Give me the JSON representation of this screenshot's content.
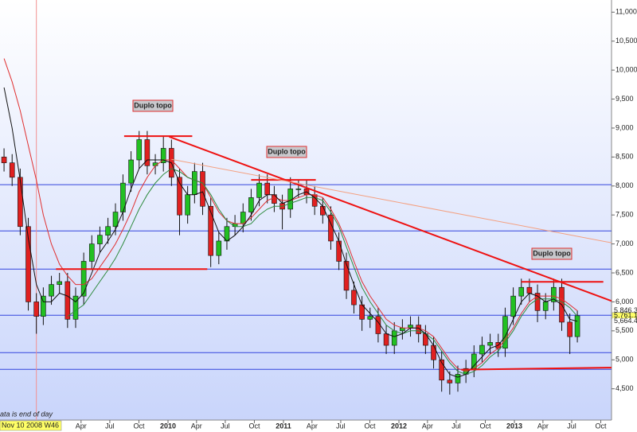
{
  "chart_data": {
    "type": "candlestick",
    "xlim": [
      2008.545,
      2013.841
    ],
    "ylim": [
      3960,
      11210
    ],
    "xticks": [
      {
        "value": 2009.247,
        "label": "Apr"
      },
      {
        "value": 2009.496,
        "label": "Jul"
      },
      {
        "value": 2009.748,
        "label": "Oct"
      },
      2010,
      {
        "value": 2010.247,
        "label": "Apr"
      },
      {
        "value": 2010.496,
        "label": "Jul"
      },
      {
        "value": 2010.748,
        "label": "Oct"
      },
      2011,
      {
        "value": 2011.247,
        "label": "Apr"
      },
      {
        "value": 2011.496,
        "label": "Jul"
      },
      {
        "value": 2011.748,
        "label": "Oct"
      },
      2012,
      {
        "value": 2012.247,
        "label": "Apr"
      },
      {
        "value": 2012.496,
        "label": "Jul"
      },
      {
        "value": 2012.748,
        "label": "Oct"
      },
      2013,
      {
        "value": 2013.247,
        "label": "Apr"
      },
      {
        "value": 2013.496,
        "label": "Jul"
      },
      {
        "value": 2013.748,
        "label": "Oct"
      }
    ],
    "yticks": [
      {
        "value": 4500,
        "label": "4,500"
      },
      {
        "value": 5000,
        "label": "5,000"
      },
      {
        "value": 5500,
        "label": "5,500"
      },
      {
        "value": 6000,
        "label": "6,000"
      },
      {
        "value": 6500,
        "label": "6,500"
      },
      {
        "value": 7000,
        "label": "7,000"
      },
      {
        "value": 7500,
        "label": "7,500"
      },
      {
        "value": 8000,
        "label": "8,000"
      },
      {
        "value": 8500,
        "label": "8,500"
      },
      {
        "value": 9000,
        "label": "9,000"
      },
      {
        "value": 9500,
        "label": "9,500"
      },
      {
        "value": 10000,
        "label": "10,000"
      },
      {
        "value": 10500,
        "label": "10,500"
      },
      {
        "value": 11000,
        "label": "11,000"
      }
    ],
    "x": [
      2008.58,
      2008.65,
      2008.72,
      2008.79,
      2008.86,
      2008.92,
      2008.99,
      2009.06,
      2009.13,
      2009.2,
      2009.27,
      2009.34,
      2009.41,
      2009.48,
      2009.545,
      2009.61,
      2009.68,
      2009.75,
      2009.82,
      2009.89,
      2009.96,
      2010.03,
      2010.1,
      2010.17,
      2010.23,
      2010.3,
      2010.37,
      2010.44,
      2010.51,
      2010.58,
      2010.65,
      2010.72,
      2010.79,
      2010.86,
      2010.92,
      2010.99,
      2011.06,
      2011.13,
      2011.2,
      2011.27,
      2011.34,
      2011.41,
      2011.48,
      2011.545,
      2011.61,
      2011.68,
      2011.75,
      2011.82,
      2011.89,
      2011.96,
      2012.03,
      2012.1,
      2012.17,
      2012.23,
      2012.3,
      2012.37,
      2012.44,
      2012.51,
      2012.58,
      2012.65,
      2012.72,
      2012.79,
      2012.86,
      2012.92,
      2012.99,
      2013.06,
      2013.13,
      2013.2,
      2013.27,
      2013.34,
      2013.41,
      2013.48,
      2013.545
    ],
    "open": [
      8500,
      8400,
      8150,
      7300,
      6000,
      5750,
      6100,
      6300,
      6350,
      5700,
      6100,
      6700,
      7000,
      7150,
      7300,
      7550,
      8050,
      8450,
      8800,
      8350,
      8400,
      8650,
      8150,
      7500,
      7850,
      8250,
      7650,
      6800,
      7050,
      7300,
      7350,
      7550,
      7800,
      8050,
      7850,
      7700,
      7600,
      7950,
      7950,
      7850,
      7650,
      7500,
      7050,
      6700,
      6200,
      5950,
      5700,
      5750,
      5450,
      5250,
      5500,
      5550,
      5600,
      5450,
      5250,
      5000,
      4650,
      4600,
      4750,
      4850,
      5100,
      5250,
      5300,
      5200,
      5750,
      6100,
      6250,
      6150,
      5850,
      6000,
      6250,
      5650,
      5400
    ],
    "high": [
      8650,
      8550,
      8300,
      7450,
      6150,
      6250,
      6450,
      6500,
      6500,
      6250,
      6850,
      7150,
      7300,
      7450,
      7700,
      8200,
      8600,
      8950,
      8950,
      8550,
      8850,
      8800,
      8300,
      8000,
      8400,
      8400,
      7800,
      7200,
      7450,
      7500,
      7700,
      7950,
      8200,
      8200,
      8000,
      7850,
      8150,
      8100,
      8100,
      8000,
      7800,
      7650,
      7200,
      6850,
      6350,
      6100,
      5900,
      5900,
      5600,
      5650,
      5700,
      5750,
      5750,
      5600,
      5400,
      5150,
      4800,
      4900,
      5000,
      5250,
      5400,
      5450,
      5450,
      5900,
      6250,
      6400,
      6400,
      6300,
      6150,
      6400,
      6400,
      5800,
      5850
    ],
    "low": [
      8250,
      8000,
      7150,
      5850,
      5450,
      5600,
      5950,
      6150,
      5550,
      5550,
      5950,
      6550,
      6850,
      7000,
      7150,
      7400,
      7900,
      8300,
      8200,
      8200,
      8250,
      8000,
      7150,
      7350,
      7700,
      7500,
      6600,
      6650,
      6900,
      7150,
      7200,
      7400,
      7650,
      7700,
      7550,
      7250,
      7450,
      7800,
      7700,
      7500,
      7350,
      6900,
      6550,
      6050,
      5800,
      5500,
      5550,
      5300,
      5100,
      5100,
      5350,
      5400,
      5300,
      5100,
      4850,
      4450,
      4400,
      4450,
      4600,
      4700,
      4950,
      5100,
      5050,
      5050,
      5600,
      5950,
      6000,
      5650,
      5700,
      5850,
      5500,
      5100,
      5300
    ],
    "close": [
      8400,
      8150,
      7300,
      6000,
      5750,
      6100,
      6300,
      6350,
      5700,
      6100,
      6700,
      7000,
      7150,
      7300,
      7550,
      8050,
      8450,
      8800,
      8350,
      8400,
      8650,
      8150,
      7500,
      7850,
      8250,
      7650,
      6800,
      7050,
      7300,
      7350,
      7550,
      7800,
      8050,
      7850,
      7700,
      7600,
      7950,
      7950,
      7850,
      7650,
      7500,
      7050,
      6700,
      6200,
      5950,
      5700,
      5750,
      5450,
      5250,
      5500,
      5550,
      5600,
      5450,
      5250,
      5000,
      4650,
      4600,
      4750,
      4850,
      5100,
      5250,
      5300,
      5200,
      5750,
      6100,
      6250,
      6150,
      5850,
      6000,
      6250,
      5650,
      5400,
      5761.12
    ],
    "up_color": "#22c022",
    "down_color": "#e02020",
    "overlays": [
      {
        "color": "#e03030",
        "values": [
          10200,
          9800,
          9300,
          8700,
          8100,
          7500,
          7000,
          6650,
          6450,
          6300,
          6300,
          6400,
          6600,
          6800,
          7000,
          7250,
          7550,
          7900,
          8150,
          8350,
          8450,
          8450,
          8300,
          8150,
          8100,
          8050,
          7800,
          7550,
          7400,
          7350,
          7350,
          7450,
          7600,
          7750,
          7800,
          7750,
          7750,
          7800,
          7850,
          7850,
          7800,
          7600,
          7350,
          7050,
          6700,
          6350,
          6100,
          5900,
          5700,
          5600,
          5550,
          5550,
          5550,
          5500,
          5400,
          5200,
          5000,
          4850,
          4800,
          4850,
          4950,
          5100,
          5200,
          5350,
          5550,
          5800,
          6000,
          6100,
          6100,
          6100,
          6050,
          5950,
          5846.3
        ]
      },
      {
        "color": "#2e8b3e",
        "values": [
          null,
          null,
          null,
          null,
          null,
          null,
          null,
          null,
          5750,
          5850,
          5950,
          6150,
          6350,
          6550,
          6750,
          7000,
          7300,
          7600,
          7850,
          8050,
          8200,
          8300,
          8250,
          8150,
          8100,
          8050,
          7850,
          7600,
          7400,
          7300,
          7300,
          7350,
          7500,
          7600,
          7650,
          7650,
          7700,
          7750,
          7800,
          7800,
          7750,
          7550,
          7300,
          6950,
          6600,
          6250,
          6000,
          5800,
          5600,
          5500,
          5450,
          5500,
          5500,
          5450,
          5350,
          5150,
          4950,
          4800,
          4750,
          4800,
          4900,
          5050,
          5150,
          5300,
          5500,
          5750,
          5950,
          6050,
          6050,
          6050,
          6000,
          5900,
          5750
        ]
      },
      {
        "color": "#111111",
        "values": [
          9700,
          9000,
          8100,
          7100,
          6300,
          6000,
          6000,
          6150,
          6100,
          6000,
          6150,
          6500,
          6850,
          7050,
          7250,
          7550,
          7950,
          8300,
          8450,
          8450,
          8450,
          8400,
          8050,
          7850,
          7850,
          7900,
          7550,
          7200,
          7050,
          7150,
          7300,
          7500,
          7750,
          7850,
          7850,
          7700,
          7750,
          7850,
          7900,
          7800,
          7650,
          7350,
          7050,
          6650,
          6300,
          5950,
          5800,
          5650,
          5450,
          5400,
          5450,
          5550,
          5550,
          5450,
          5250,
          4950,
          4750,
          4700,
          4750,
          4900,
          5050,
          5200,
          5250,
          5400,
          5700,
          6000,
          6150,
          6100,
          6000,
          6050,
          5950,
          5700,
          5664.4
        ]
      }
    ],
    "levels": {
      "color": "#3344dd",
      "values": [
        8022,
        7225,
        6566,
        5769,
        5124,
        4835
      ]
    },
    "trendlines": [
      {
        "color": "#ee1111",
        "x": [
          2009.62,
          2010.21
        ],
        "y": [
          8860,
          8860
        ]
      },
      {
        "color": "#ee1111",
        "x": [
          2010.01,
          2013.841
        ],
        "y": [
          8850,
          6015
        ]
      },
      {
        "color": "#ee1111",
        "x": [
          2010.72,
          2011.28
        ],
        "y": [
          8105,
          8105
        ]
      },
      {
        "color": "#ee1111",
        "x": [
          2009.03,
          2010.34
        ],
        "y": [
          6565,
          6565
        ]
      },
      {
        "color": "#ee1111",
        "x": [
          2013.06,
          2013.77
        ],
        "y": [
          6345,
          6345
        ]
      },
      {
        "color": "#ee1111",
        "x": [
          2012.54,
          2013.841
        ],
        "y": [
          4830,
          4865
        ]
      },
      {
        "color": "#f4a080",
        "x": [
          2010.03,
          2013.841
        ],
        "y": [
          8460,
          7020
        ]
      }
    ],
    "annotations": [
      "Duplo topo",
      "Duplo topo",
      "Duplo topo"
    ],
    "end_labels": {
      "values": [
        5846.3,
        5761.12,
        5664.4
      ],
      "value_labels": [
        "5,846.3",
        "5,761.12",
        "5,664.4"
      ]
    },
    "cursor": {
      "x": 2008.86,
      "label": "Nov 10 2008 W46"
    },
    "note": "ata is end of day"
  }
}
